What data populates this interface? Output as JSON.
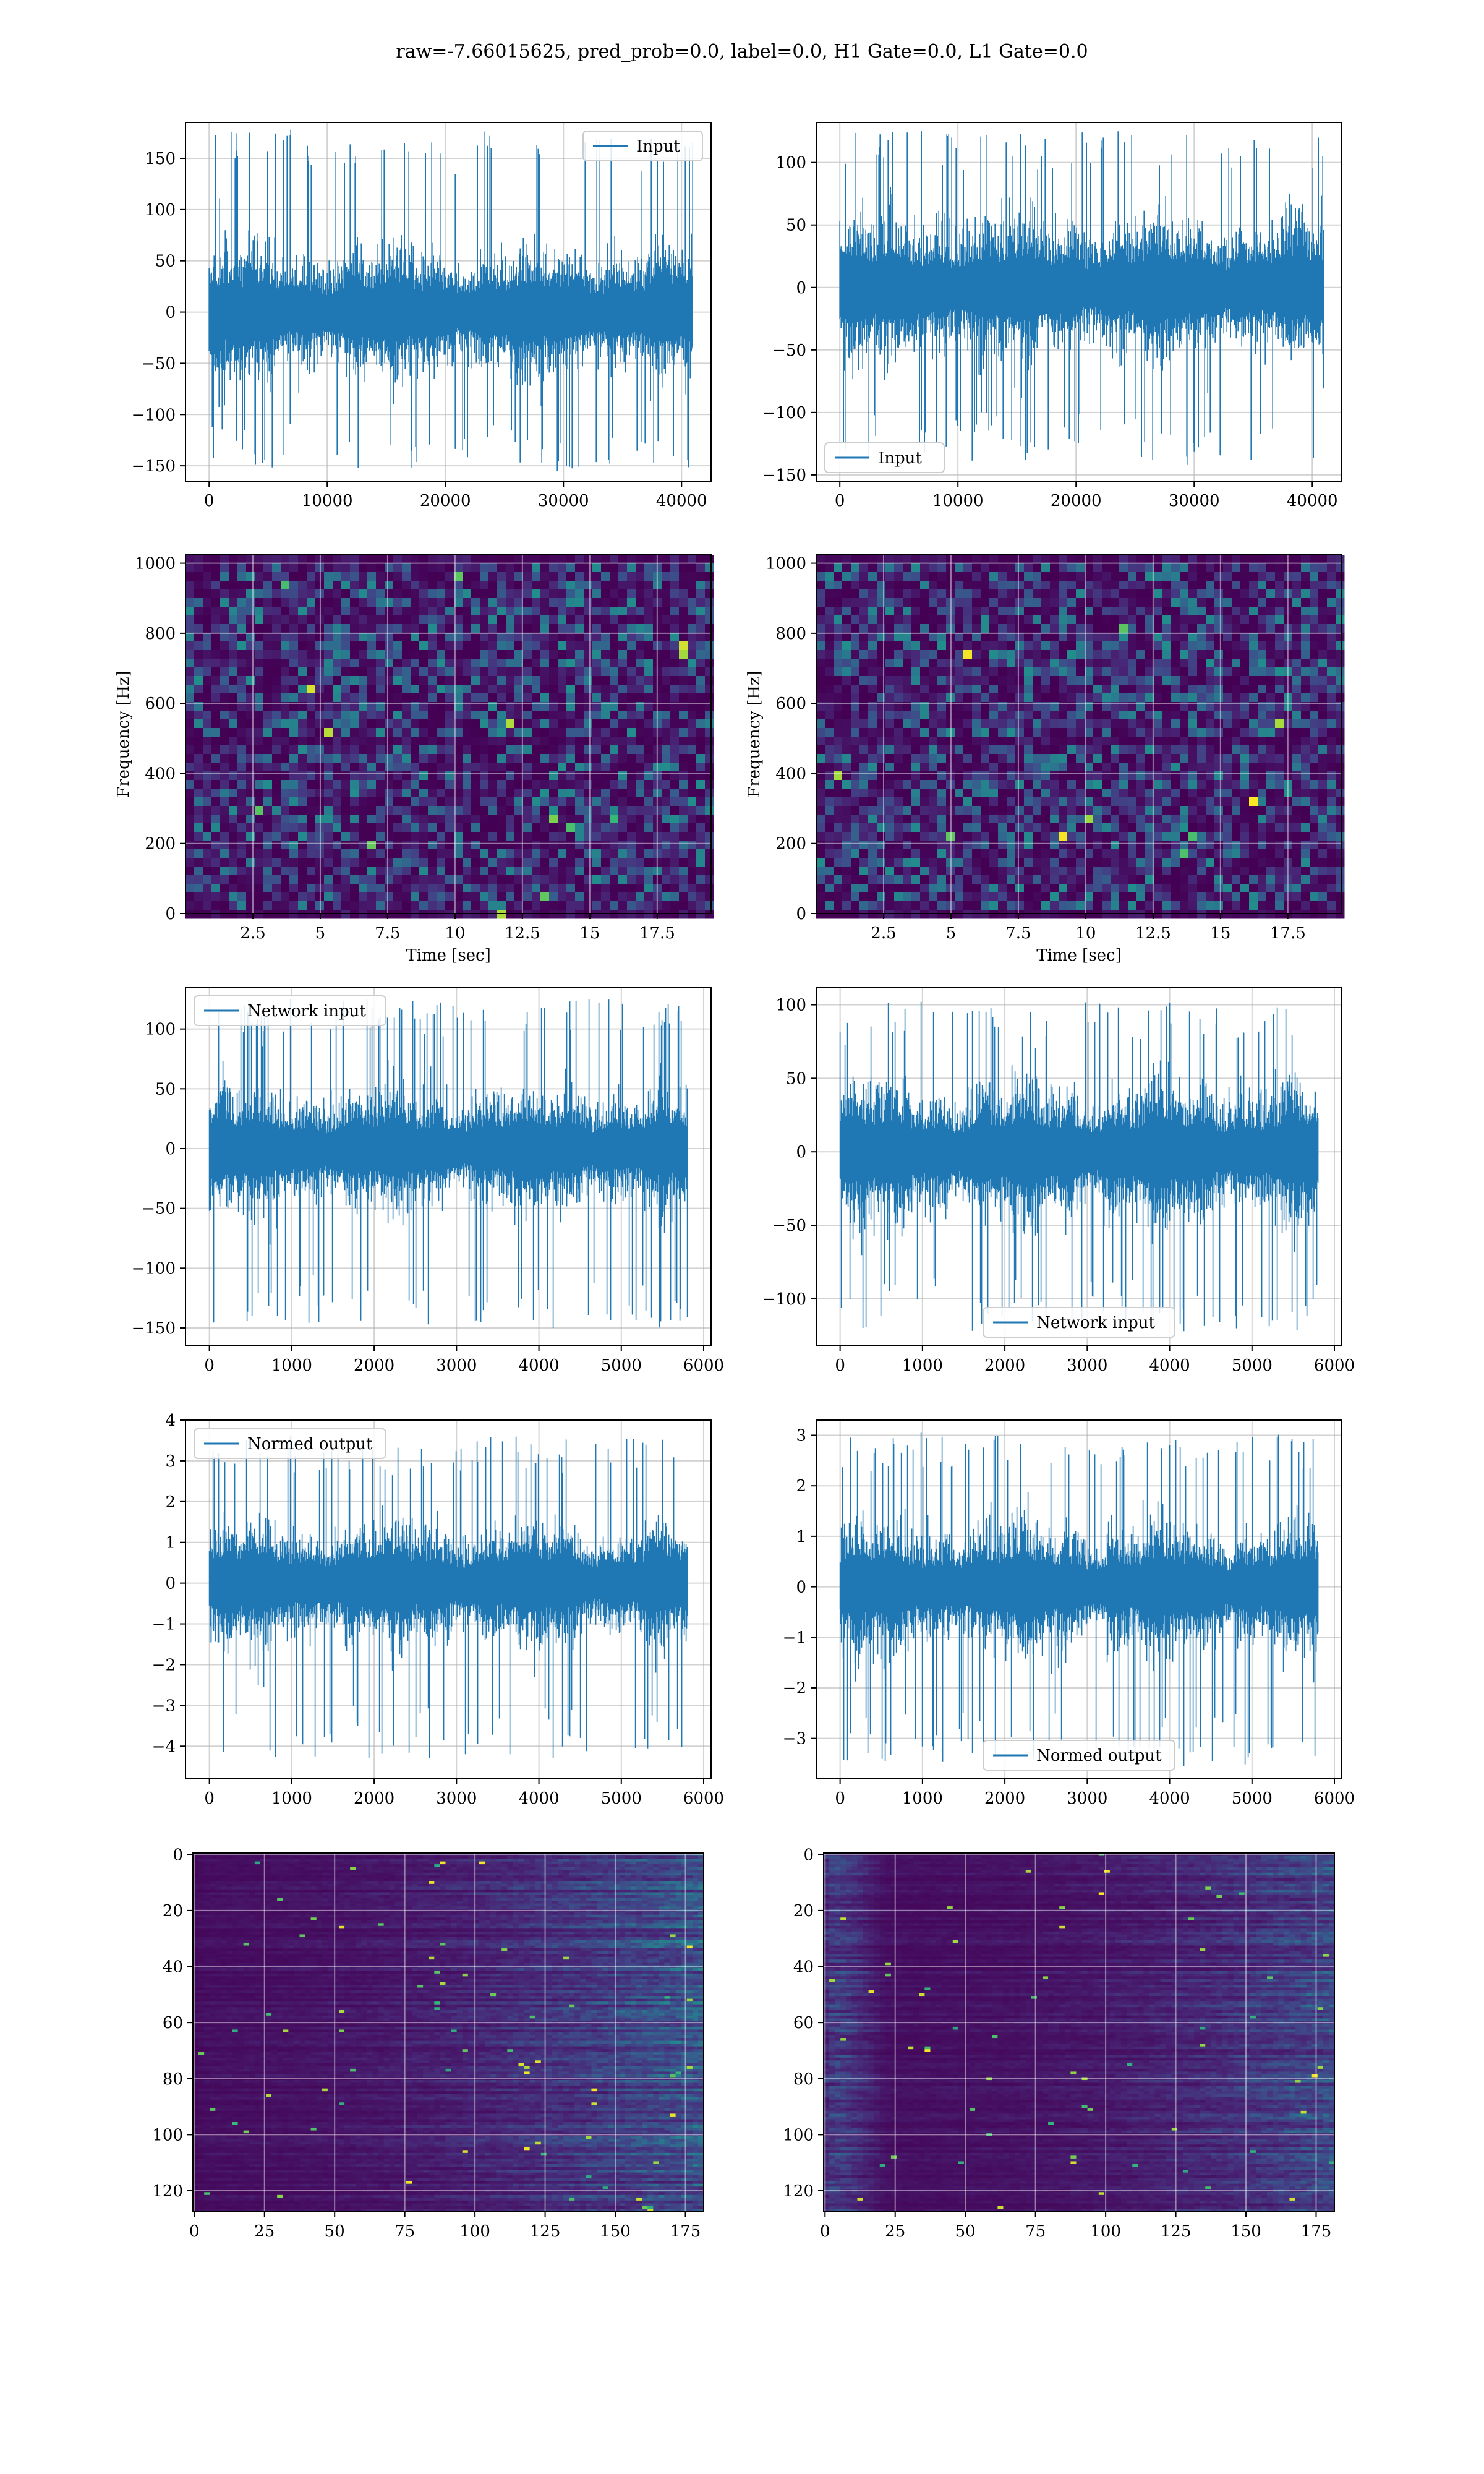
{
  "suptitle": "raw=-7.66015625, pred_prob=0.0, label=0.0, H1 Gate=0.0, L1 Gate=0.0",
  "colors": {
    "line": "#1f77b4",
    "grid": "#b0b0b0",
    "viridis_dark": "#440154",
    "viridis_mid": "#31688e",
    "viridis_green": "#35b779",
    "viridis_yellow": "#fde725"
  },
  "chart_data": [
    {
      "id": "row1-left",
      "type": "line",
      "xlim": [
        -2000,
        42500
      ],
      "ylim": [
        -165,
        185
      ],
      "xticks": [
        0,
        10000,
        20000,
        30000,
        40000
      ],
      "yticks": [
        -150,
        -100,
        -50,
        0,
        50,
        100,
        150
      ],
      "xdata_range": [
        0,
        40960
      ],
      "series": [
        {
          "name": "Input",
          "amplitude_typical": 50,
          "amplitude_peak": 178,
          "peak_min": -155,
          "seed": 11
        }
      ],
      "legend": "upper right",
      "grid": true
    },
    {
      "id": "row1-right",
      "type": "line",
      "xlim": [
        -2000,
        42500
      ],
      "ylim": [
        -155,
        132
      ],
      "xticks": [
        0,
        10000,
        20000,
        30000,
        40000
      ],
      "yticks": [
        -150,
        -100,
        -50,
        0,
        50,
        100
      ],
      "xdata_range": [
        0,
        40960
      ],
      "series": [
        {
          "name": "Input",
          "amplitude_typical": 45,
          "amplitude_peak": 125,
          "peak_min": -142,
          "seed": 23
        }
      ],
      "legend": "lower left",
      "grid": true
    },
    {
      "id": "row2-left",
      "type": "heatmap",
      "xlim": [
        0,
        19.5
      ],
      "ylim": [
        0,
        1024
      ],
      "xticks": [
        2.5,
        5.0,
        7.5,
        10.0,
        12.5,
        15.0,
        17.5
      ],
      "yticks": [
        0,
        200,
        400,
        600,
        800,
        1000
      ],
      "xlabel": "Time [sec]",
      "ylabel": "Frequency [Hz]",
      "grid": true,
      "colormap": "viridis",
      "seed": 31
    },
    {
      "id": "row2-right",
      "type": "heatmap",
      "xlim": [
        0,
        19.5
      ],
      "ylim": [
        0,
        1024
      ],
      "xticks": [
        2.5,
        5.0,
        7.5,
        10.0,
        12.5,
        15.0,
        17.5
      ],
      "yticks": [
        0,
        200,
        400,
        600,
        800,
        1000
      ],
      "xlabel": "Time [sec]",
      "ylabel": "Frequency [Hz]",
      "grid": true,
      "colormap": "viridis",
      "seed": 47
    },
    {
      "id": "row3-left",
      "type": "line",
      "xlim": [
        -290,
        6090
      ],
      "ylim": [
        -165,
        135
      ],
      "xticks": [
        0,
        1000,
        2000,
        3000,
        4000,
        5000,
        6000
      ],
      "yticks": [
        -150,
        -100,
        -50,
        0,
        50,
        100
      ],
      "xdata_range": [
        0,
        5800
      ],
      "series": [
        {
          "name": "Network input",
          "amplitude_typical": 40,
          "amplitude_peak": 125,
          "peak_min": -150,
          "seed": 53
        }
      ],
      "legend": "upper left",
      "grid": true
    },
    {
      "id": "row3-right",
      "type": "line",
      "xlim": [
        -290,
        6090
      ],
      "ylim": [
        -132,
        112
      ],
      "xticks": [
        0,
        1000,
        2000,
        3000,
        4000,
        5000,
        6000
      ],
      "yticks": [
        -100,
        -50,
        0,
        50,
        100
      ],
      "xdata_range": [
        0,
        5800
      ],
      "series": [
        {
          "name": "Network input",
          "amplitude_typical": 38,
          "amplitude_peak": 102,
          "peak_min": -122,
          "seed": 61
        }
      ],
      "legend": "lower center",
      "grid": true
    },
    {
      "id": "row4-left",
      "type": "line",
      "xlim": [
        -290,
        6090
      ],
      "ylim": [
        -4.8,
        4.0
      ],
      "xticks": [
        0,
        1000,
        2000,
        3000,
        4000,
        5000,
        6000
      ],
      "yticks": [
        -4,
        -3,
        -2,
        -1,
        0,
        1,
        2,
        3,
        4
      ],
      "xdata_range": [
        0,
        5800
      ],
      "series": [
        {
          "name": "Normed output",
          "amplitude_typical": 1.2,
          "amplitude_peak": 3.6,
          "peak_min": -4.3,
          "seed": 73
        }
      ],
      "legend": "upper left",
      "grid": true
    },
    {
      "id": "row4-right",
      "type": "line",
      "xlim": [
        -290,
        6090
      ],
      "ylim": [
        -3.8,
        3.3
      ],
      "xticks": [
        0,
        1000,
        2000,
        3000,
        4000,
        5000,
        6000
      ],
      "yticks": [
        -3,
        -2,
        -1,
        0,
        1,
        2,
        3
      ],
      "xdata_range": [
        0,
        5800
      ],
      "series": [
        {
          "name": "Normed output",
          "amplitude_typical": 1.0,
          "amplitude_peak": 3.05,
          "peak_min": -3.55,
          "seed": 89
        }
      ],
      "legend": "lower center",
      "grid": true
    },
    {
      "id": "row5-left",
      "type": "heatmap",
      "xlim": [
        -0.5,
        181.5
      ],
      "ylim": [
        127.5,
        -0.5
      ],
      "xticks": [
        0,
        25,
        50,
        75,
        100,
        125,
        150,
        175
      ],
      "yticks": [
        0,
        20,
        40,
        60,
        80,
        100,
        120
      ],
      "grid": true,
      "colormap": "viridis",
      "rows": 128,
      "cols": 182,
      "seed": 97,
      "intensity_trend": "increasing"
    },
    {
      "id": "row5-right",
      "type": "heatmap",
      "xlim": [
        -0.5,
        181.5
      ],
      "ylim": [
        127.5,
        -0.5
      ],
      "xticks": [
        0,
        25,
        50,
        75,
        100,
        125,
        150,
        175
      ],
      "yticks": [
        0,
        20,
        40,
        60,
        80,
        100,
        120
      ],
      "grid": true,
      "colormap": "viridis",
      "rows": 128,
      "cols": 182,
      "seed": 101,
      "intensity_trend": "edges"
    }
  ]
}
